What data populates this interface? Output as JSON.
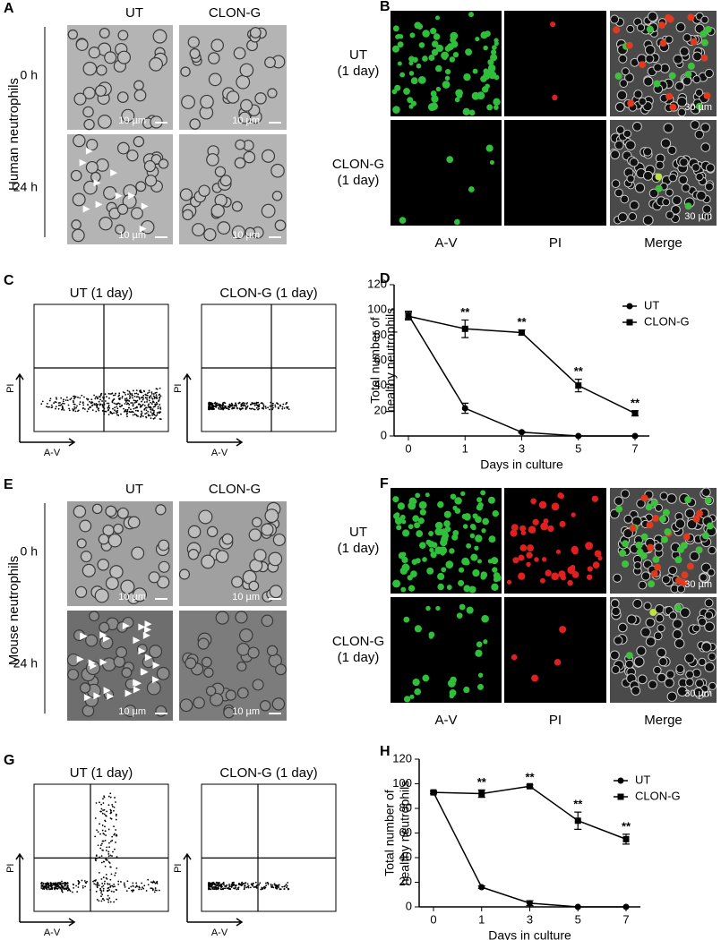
{
  "panels": {
    "A": {
      "label": "A",
      "columns": [
        "UT",
        "CLON-G"
      ],
      "rows": [
        "0 h",
        "24 h"
      ],
      "side_label": "Human neutrophils",
      "scale_bars": [
        "10 µm",
        "10 µm",
        "10 µm",
        "10 µm"
      ]
    },
    "B": {
      "label": "B",
      "rows": [
        [
          "UT",
          "(1 day)"
        ],
        [
          "CLON-G",
          "(1 day)"
        ]
      ],
      "columns": [
        "A-V",
        "PI",
        "Merge"
      ],
      "scale_bars": [
        "30 µm",
        "30 µm"
      ]
    },
    "C": {
      "label": "C",
      "titles": [
        "UT (1 day)",
        "CLON-G (1 day)"
      ],
      "y_axis": "PI",
      "x_axis": "A-V"
    },
    "D": {
      "label": "D"
    },
    "E": {
      "label": "E",
      "columns": [
        "UT",
        "CLON-G"
      ],
      "rows": [
        "0 h",
        "24 h"
      ],
      "side_label": "Mouse neutrophils",
      "scale_bars": [
        "10 µm",
        "10 µm",
        "10 µm",
        "10 µm"
      ]
    },
    "F": {
      "label": "F",
      "rows": [
        [
          "UT",
          "(1 day)"
        ],
        [
          "CLON-G",
          "(1 day)"
        ]
      ],
      "columns": [
        "A-V",
        "PI",
        "Merge"
      ],
      "scale_bars": [
        "30 µm",
        "30 µm"
      ]
    },
    "G": {
      "label": "G",
      "titles": [
        "UT (1 day)",
        "CLON-G (1 day)"
      ],
      "y_axis": "PI",
      "x_axis": "A-V"
    },
    "H": {
      "label": "H"
    }
  },
  "chart_data": [
    {
      "type": "line",
      "ylabel": [
        "Total number of",
        "healthy neutrophils"
      ],
      "xlabel": "Days in culture",
      "categories": [
        "0",
        "1",
        "3",
        "5",
        "7"
      ],
      "ylim": [
        0,
        120
      ],
      "yticks": [
        0,
        20,
        40,
        60,
        80,
        100,
        120
      ],
      "legend": "top-right",
      "series": [
        {
          "name": "UT",
          "color": "#000000",
          "marker": "circle",
          "values": [
            96,
            22,
            3,
            0,
            0
          ],
          "errors": [
            3,
            4,
            0.5,
            0,
            0
          ]
        },
        {
          "name": "CLON-G",
          "color": "#000000",
          "marker": "square",
          "values": [
            95,
            85,
            82,
            40,
            18
          ],
          "errors": [
            3,
            7,
            2,
            5,
            2
          ]
        }
      ],
      "annotations": [
        {
          "x": "1",
          "text": "**"
        },
        {
          "x": "3",
          "text": "**"
        },
        {
          "x": "5",
          "text": "**"
        },
        {
          "x": "7",
          "text": "**"
        }
      ]
    },
    {
      "type": "line",
      "ylabel": [
        "Total number of",
        "healthy neutrophils"
      ],
      "xlabel": "Days in culture",
      "categories": [
        "0",
        "1",
        "3",
        "5",
        "7"
      ],
      "ylim": [
        0,
        120
      ],
      "yticks": [
        0,
        20,
        40,
        60,
        80,
        100,
        120
      ],
      "legend": "top-right",
      "series": [
        {
          "name": "UT",
          "color": "#000000",
          "marker": "circle",
          "values": [
            93,
            16,
            3,
            0,
            0
          ],
          "errors": [
            1,
            1,
            2,
            0,
            0
          ]
        },
        {
          "name": "CLON-G",
          "color": "#000000",
          "marker": "square",
          "values": [
            93,
            92,
            98,
            70,
            55
          ],
          "errors": [
            1,
            3,
            1,
            7,
            4
          ]
        }
      ],
      "annotations": [
        {
          "x": "1",
          "text": "**"
        },
        {
          "x": "3",
          "text": "**"
        },
        {
          "x": "5",
          "text": "**"
        },
        {
          "x": "7",
          "text": "**"
        }
      ]
    }
  ]
}
